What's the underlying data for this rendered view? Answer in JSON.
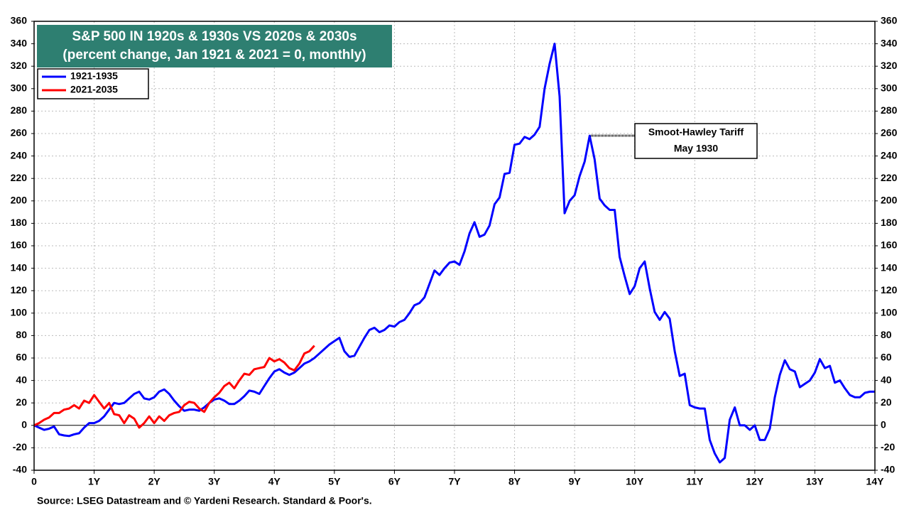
{
  "chart_data": {
    "type": "line",
    "title": [
      "S&P 500 IN 1920s & 1930s VS 2020s & 2030s",
      "(percent change, Jan 1921 & 2021 = 0, monthly)"
    ],
    "annotations": [
      "Smoot-Hawley Tariff",
      "May 1930"
    ],
    "source": "Source: LSEG Datastream and © Yardeni Research. Standard & Poor's.",
    "xlim": [
      0,
      14
    ],
    "xticks": [
      0,
      {
        "value": 1,
        "label": "1Y"
      },
      {
        "value": 2,
        "label": "2Y"
      },
      {
        "value": 3,
        "label": "3Y"
      },
      {
        "value": 4,
        "label": "4Y"
      },
      {
        "value": 5,
        "label": "5Y"
      },
      {
        "value": 6,
        "label": "6Y"
      },
      {
        "value": 7,
        "label": "7Y"
      },
      {
        "value": 8,
        "label": "8Y"
      },
      {
        "value": 9,
        "label": "9Y"
      },
      {
        "value": 10,
        "label": "10Y"
      },
      {
        "value": 11,
        "label": "11Y"
      },
      {
        "value": 12,
        "label": "12Y"
      },
      {
        "value": 13,
        "label": "13Y"
      },
      {
        "value": 14,
        "label": "14Y"
      }
    ],
    "ylim": [
      -40,
      360
    ],
    "yticks": [
      -40,
      -20,
      0,
      20,
      40,
      60,
      80,
      100,
      120,
      140,
      160,
      180,
      200,
      220,
      240,
      260,
      280,
      300,
      320,
      340,
      360
    ],
    "y2lim": [
      -40,
      360
    ],
    "y2ticks": [
      -40,
      -20,
      0,
      20,
      40,
      60,
      80,
      100,
      120,
      140,
      160,
      180,
      200,
      220,
      240,
      260,
      280,
      300,
      320,
      340,
      360
    ],
    "grid": true,
    "legend": "top-left",
    "series": [
      {
        "name": "1921-1935",
        "color": "#0000ff",
        "x": [
          0,
          0.083,
          0.167,
          0.25,
          0.333,
          0.417,
          0.5,
          0.583,
          0.667,
          0.75,
          0.833,
          0.917,
          1,
          1.083,
          1.167,
          1.25,
          1.333,
          1.417,
          1.5,
          1.583,
          1.667,
          1.75,
          1.833,
          1.917,
          2,
          2.083,
          2.167,
          2.25,
          2.333,
          2.417,
          2.5,
          2.583,
          2.667,
          2.75,
          2.833,
          2.917,
          3,
          3.083,
          3.167,
          3.25,
          3.333,
          3.417,
          3.5,
          3.583,
          3.667,
          3.75,
          3.833,
          3.917,
          4,
          4.083,
          4.167,
          4.25,
          4.333,
          4.417,
          4.5,
          4.583,
          4.667,
          4.75,
          4.833,
          4.917,
          5,
          5.083,
          5.167,
          5.25,
          5.333,
          5.417,
          5.5,
          5.583,
          5.667,
          5.75,
          5.833,
          5.917,
          6,
          6.083,
          6.167,
          6.25,
          6.333,
          6.417,
          6.5,
          6.583,
          6.667,
          6.75,
          6.833,
          6.917,
          7,
          7.083,
          7.167,
          7.25,
          7.333,
          7.417,
          7.5,
          7.583,
          7.667,
          7.75,
          7.833,
          7.917,
          8,
          8.083,
          8.167,
          8.25,
          8.333,
          8.417,
          8.5,
          8.583,
          8.667,
          8.75,
          8.833,
          8.917,
          9,
          9.083,
          9.167,
          9.25,
          9.333,
          9.417,
          9.5,
          9.583,
          9.667,
          9.75,
          9.833,
          9.917,
          10,
          10.083,
          10.167,
          10.25,
          10.333,
          10.417,
          10.5,
          10.583,
          10.667,
          10.75,
          10.833,
          10.917,
          11,
          11.083,
          11.167,
          11.25,
          11.333,
          11.417,
          11.5,
          11.583,
          11.667,
          11.75,
          11.833,
          11.917,
          12,
          12.083,
          12.167,
          12.25,
          12.333,
          12.417,
          12.5,
          12.583,
          12.667,
          12.75,
          12.833,
          12.917,
          13,
          13.083,
          13.167,
          13.25,
          13.333,
          13.417,
          13.5,
          13.583,
          13.667,
          13.75,
          13.833,
          13.917,
          14
        ],
        "values": [
          0,
          -2,
          -4,
          -3,
          -1,
          -8,
          -9,
          -9.5,
          -8,
          -7,
          -2,
          2,
          2,
          4,
          8,
          14,
          20,
          19,
          20,
          24,
          28,
          30,
          24,
          23,
          25,
          30,
          32,
          28,
          22,
          17,
          13,
          14,
          14,
          13,
          16,
          20,
          23,
          24,
          22,
          19,
          19,
          22,
          26,
          31,
          30,
          28,
          35,
          42,
          48,
          50,
          47,
          45,
          47,
          51,
          55,
          57,
          60,
          64,
          68,
          72,
          75,
          78,
          66,
          61,
          62,
          70,
          78,
          85,
          87,
          83,
          85,
          89,
          88,
          92,
          94,
          100,
          107,
          109,
          114,
          126,
          138,
          134,
          140,
          145,
          146,
          143,
          155,
          171,
          181,
          168,
          170,
          178,
          197,
          203,
          224,
          225,
          250,
          251,
          257,
          255,
          259,
          266,
          300,
          322,
          340,
          293,
          189,
          200,
          205,
          222,
          235,
          258,
          237,
          202,
          196,
          192,
          192,
          150,
          133,
          117,
          124,
          140,
          146,
          122,
          101,
          94,
          101,
          95,
          66,
          44,
          46,
          18,
          16,
          15,
          15,
          -13,
          -25,
          -33,
          -29,
          5,
          16,
          0,
          0,
          -4,
          0,
          -13,
          -13,
          -3,
          25,
          45,
          58,
          50,
          48,
          34,
          37,
          40,
          47,
          59,
          51,
          53,
          38,
          40,
          33,
          27,
          25,
          25,
          29,
          30,
          30
        ]
      },
      {
        "name": "2021-2035",
        "color": "#ff0000",
        "x": [
          0,
          0.083,
          0.167,
          0.25,
          0.333,
          0.417,
          0.5,
          0.583,
          0.667,
          0.75,
          0.833,
          0.917,
          1,
          1.083,
          1.167,
          1.25,
          1.333,
          1.417,
          1.5,
          1.583,
          1.667,
          1.75,
          1.833,
          1.917,
          2,
          2.083,
          2.167,
          2.25,
          2.333,
          2.417,
          2.5,
          2.583,
          2.667,
          2.75,
          2.833,
          2.917,
          3,
          3.083,
          3.167,
          3.25,
          3.333,
          3.417,
          3.5,
          3.583,
          3.667,
          3.75,
          3.833,
          3.917,
          4,
          4.083,
          4.167,
          4.25,
          4.333,
          4.417,
          4.5,
          4.583,
          4.667
        ],
        "values": [
          0,
          2,
          5,
          7,
          11,
          11,
          14,
          15,
          18,
          15,
          22,
          20,
          27,
          21,
          15,
          20,
          10,
          9,
          2,
          9,
          6,
          -2,
          2,
          8,
          2,
          8,
          4,
          9,
          11,
          12,
          18,
          21,
          20,
          15,
          12,
          20,
          25,
          29,
          35,
          38,
          33,
          40,
          46,
          45,
          50,
          51,
          52,
          60,
          57,
          59,
          56,
          51,
          49,
          55,
          64,
          66,
          71
        ]
      }
    ]
  }
}
